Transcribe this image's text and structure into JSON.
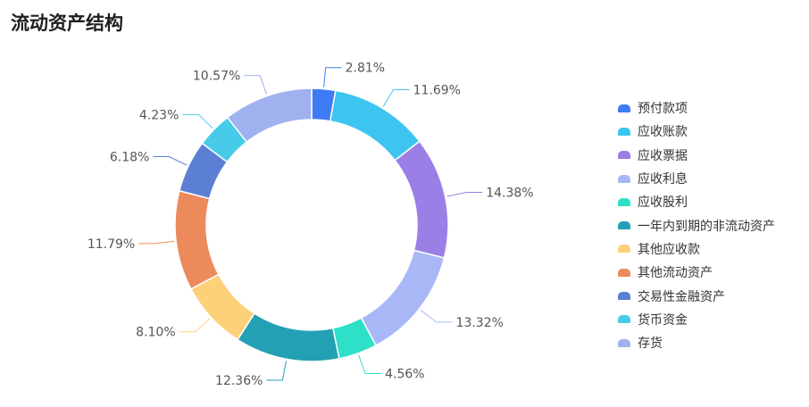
{
  "chart_data": {
    "type": "pie",
    "title": "流动资产结构",
    "legend_position": "right",
    "slices": [
      {
        "name": "预付款项",
        "value": 2.81,
        "label": "2.81%",
        "color": "#3d7cf5"
      },
      {
        "name": "应收账款",
        "value": 11.69,
        "label": "11.69%",
        "color": "#3ec4f0"
      },
      {
        "name": "应收票据",
        "value": 14.38,
        "label": "14.38%",
        "color": "#9a7fe6"
      },
      {
        "name": "应收利息",
        "value": 13.32,
        "label": "13.32%",
        "color": "#a8b8f7"
      },
      {
        "name": "应收股利",
        "value": 4.56,
        "label": "4.56%",
        "color": "#2ee0c8"
      },
      {
        "name": "一年内到期的非流动资产",
        "value": 12.36,
        "label": "12.36%",
        "color": "#24a0b4"
      },
      {
        "name": "其他应收款",
        "value": 8.1,
        "label": "8.10%",
        "color": "#fdd07a"
      },
      {
        "name": "其他流动资产",
        "value": 11.79,
        "label": "11.79%",
        "color": "#ec8a5c"
      },
      {
        "name": "交易性金融资产",
        "value": 6.18,
        "label": "6.18%",
        "color": "#5b7fd3"
      },
      {
        "name": "货币资金",
        "value": 4.23,
        "label": "4.23%",
        "color": "#47cbe8"
      },
      {
        "name": "存货",
        "value": 10.57,
        "label": "10.57%",
        "color": "#9fb2ef"
      }
    ]
  }
}
